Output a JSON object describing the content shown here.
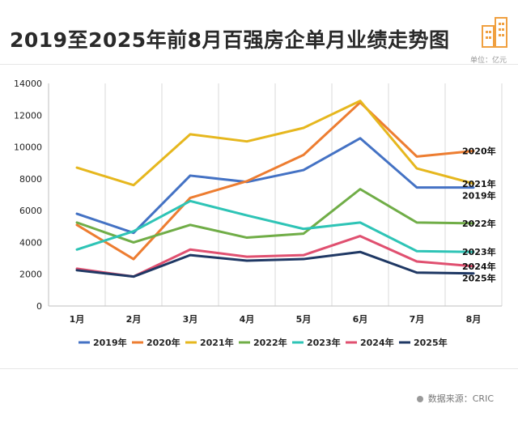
{
  "title": "2019至2025年前8月百强房企单月业绩走势图",
  "unit": "单位：亿元",
  "source": "数据来源：CRIC",
  "chart_data": {
    "type": "line",
    "x": [
      "1月",
      "2月",
      "3月",
      "4月",
      "5月",
      "6月",
      "7月",
      "8月"
    ],
    "ylim": [
      0,
      14000
    ],
    "yticks": [
      0,
      2000,
      4000,
      6000,
      8000,
      10000,
      12000,
      14000
    ],
    "grid": "vertical",
    "legend": "bottom",
    "series": [
      {
        "name": "2019年",
        "color": "#4472C4",
        "values": [
          5800,
          4600,
          8200,
          7800,
          8550,
          10550,
          7450,
          7450
        ]
      },
      {
        "name": "2020年",
        "color": "#ED7D31",
        "values": [
          5100,
          2950,
          6800,
          7850,
          9500,
          12800,
          9400,
          9750
        ]
      },
      {
        "name": "2021年",
        "color": "#E6B71E",
        "values": [
          8700,
          7600,
          10800,
          10350,
          11200,
          12900,
          8650,
          7700
        ]
      },
      {
        "name": "2022年",
        "color": "#70AD47",
        "values": [
          5250,
          4000,
          5100,
          4300,
          4550,
          7350,
          5250,
          5200
        ]
      },
      {
        "name": "2023年",
        "color": "#2EC4B6",
        "values": [
          3550,
          4700,
          6600,
          5700,
          4850,
          5250,
          3450,
          3400
        ]
      },
      {
        "name": "2024年",
        "color": "#E05070",
        "values": [
          2350,
          1850,
          3550,
          3100,
          3200,
          4400,
          2800,
          2500
        ]
      },
      {
        "name": "2025年",
        "color": "#1F3864",
        "values": [
          2250,
          1850,
          3200,
          2850,
          2950,
          3400,
          2100,
          2050
        ]
      }
    ],
    "end_labels": [
      {
        "text": "2020年",
        "series": 1
      },
      {
        "text": "2021年",
        "series": 2
      },
      {
        "text": "2019年",
        "series": 0
      },
      {
        "text": "2022年",
        "series": 3
      },
      {
        "text": "2023年",
        "series": 4
      },
      {
        "text": "2024年",
        "series": 5
      },
      {
        "text": "2025年",
        "series": 6
      }
    ]
  }
}
